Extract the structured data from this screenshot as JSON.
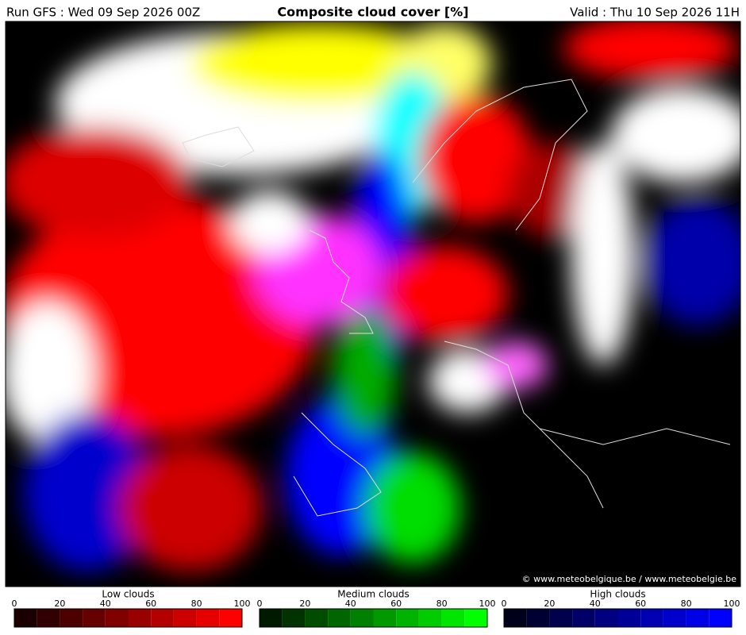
{
  "header": {
    "run": "Run GFS : Wed 09 Sep 2026 00Z",
    "title": "Composite cloud cover [%]",
    "valid": "Valid : Thu 10 Sep 2026 11H"
  },
  "map": {
    "credit": "© www.meteobelgique.be / www.meteobelgie.be"
  },
  "legends": [
    {
      "title": "Low clouds",
      "ticks": [
        0,
        20,
        40,
        60,
        80,
        100
      ],
      "colors": [
        "#1a0000",
        "#330000",
        "#4d0000",
        "#660000",
        "#800000",
        "#990000",
        "#b30000",
        "#cc0000",
        "#e60000",
        "#ff0000"
      ]
    },
    {
      "title": "Medium clouds",
      "ticks": [
        0,
        20,
        40,
        60,
        80,
        100
      ],
      "colors": [
        "#001a00",
        "#003300",
        "#004d00",
        "#006600",
        "#008000",
        "#009900",
        "#00b300",
        "#00cc00",
        "#00e600",
        "#00ff00"
      ]
    },
    {
      "title": "High clouds",
      "ticks": [
        0,
        20,
        40,
        60,
        80,
        100
      ],
      "colors": [
        "#00001a",
        "#000033",
        "#00004d",
        "#000066",
        "#000080",
        "#000099",
        "#0000b3",
        "#0000cc",
        "#0000e6",
        "#0000ff"
      ]
    }
  ]
}
